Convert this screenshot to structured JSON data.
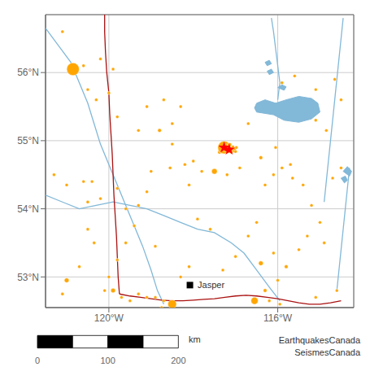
{
  "chart_data": {
    "type": "scatter",
    "xlim": [
      -121.5,
      -114.2
    ],
    "ylim": [
      52.55,
      56.85
    ],
    "xticks": [
      {
        "value": -120,
        "label": "120°W"
      },
      {
        "value": -116,
        "label": "116°W"
      }
    ],
    "yticks": [
      {
        "value": 53,
        "label": "53°N"
      },
      {
        "value": 54,
        "label": "54°N"
      },
      {
        "value": 55,
        "label": "55°N"
      },
      {
        "value": 56,
        "label": "56°N"
      }
    ],
    "grid": true,
    "series": [
      {
        "type": "line",
        "color": "#82b8d8",
        "x": [
          -121.5,
          -121.2,
          -120.9,
          -120.7,
          -120.5,
          -120.35,
          -120.2,
          -120.0,
          -119.8,
          -119.6,
          -119.4,
          -119.2,
          -119.0,
          -118.85,
          -118.7
        ],
        "y": [
          56.65,
          56.4,
          56.15,
          55.85,
          55.55,
          55.25,
          54.95,
          54.65,
          54.35,
          54.05,
          53.75,
          53.45,
          53.1,
          52.8,
          52.6
        ]
      },
      {
        "type": "line",
        "color": "#82b8d8",
        "x": [
          -121.5,
          -121.1,
          -120.7,
          -120.3,
          -119.9,
          -119.5,
          -119.1,
          -118.7,
          -118.3,
          -117.9,
          -117.5,
          -117.1,
          -116.8,
          -116.5,
          -116.2,
          -115.95
        ],
        "y": [
          54.2,
          54.1,
          54.0,
          54.05,
          54.1,
          54.05,
          54.0,
          53.9,
          53.8,
          53.7,
          53.65,
          53.5,
          53.35,
          53.1,
          52.85,
          52.65
        ]
      },
      {
        "type": "line",
        "color": "#82b8d8",
        "x": [
          -116.15,
          -116.1,
          -116.05,
          -116.0,
          -115.95,
          -116.0
        ],
        "y": [
          56.8,
          56.6,
          56.35,
          56.1,
          55.85,
          55.6
        ]
      },
      {
        "type": "line",
        "color": "#82b8d8",
        "x": [
          -114.45,
          -114.5,
          -114.55,
          -114.6,
          -114.65,
          -114.7,
          -114.75,
          -114.8,
          -114.85,
          -114.9
        ],
        "y": [
          56.8,
          56.5,
          56.2,
          55.9,
          55.6,
          55.3,
          55.0,
          54.7,
          54.4,
          54.1
        ]
      },
      {
        "type": "line",
        "color": "#82b8d8",
        "x": [
          -114.3,
          -114.35,
          -114.4,
          -114.45,
          -114.5,
          -114.55,
          -114.6
        ],
        "y": [
          54.6,
          54.3,
          54.0,
          53.7,
          53.4,
          53.1,
          52.8
        ]
      },
      {
        "type": "area",
        "color": "#82b8d8",
        "x": [
          -116.5,
          -116.1,
          -115.85,
          -115.5,
          -115.2,
          -115.0,
          -115.05,
          -115.2,
          -115.5,
          -115.8,
          -116.05,
          -116.3,
          -116.5,
          -116.55,
          -116.5
        ],
        "y": [
          55.42,
          55.38,
          55.3,
          55.27,
          55.32,
          55.42,
          55.55,
          55.62,
          55.65,
          55.6,
          55.55,
          55.6,
          55.55,
          55.48,
          55.42
        ]
      },
      {
        "type": "area",
        "color": "#82b8d8",
        "x": [
          -116.0,
          -115.9,
          -115.8,
          -115.85,
          -116.0
        ],
        "y": [
          55.78,
          55.82,
          55.79,
          55.74,
          55.78
        ]
      },
      {
        "type": "area",
        "color": "#82b8d8",
        "x": [
          -116.25,
          -116.15,
          -116.1,
          -116.2,
          -116.25
        ],
        "y": [
          56.02,
          56.05,
          56.0,
          55.97,
          56.02
        ]
      },
      {
        "type": "area",
        "color": "#82b8d8",
        "x": [
          -116.3,
          -116.2,
          -116.15,
          -116.25,
          -116.3
        ],
        "y": [
          56.15,
          56.18,
          56.13,
          56.1,
          56.15
        ]
      },
      {
        "type": "area",
        "color": "#82b8d8",
        "x": [
          -114.45,
          -114.35,
          -114.25,
          -114.3,
          -114.45
        ],
        "y": [
          54.55,
          54.62,
          54.55,
          54.48,
          54.55
        ]
      },
      {
        "type": "area",
        "color": "#82b8d8",
        "x": [
          -114.5,
          -114.4,
          -114.35,
          -114.42,
          -114.5
        ],
        "y": [
          54.45,
          54.48,
          54.42,
          54.38,
          54.45
        ]
      },
      {
        "type": "line",
        "color": "#aa1111",
        "x": [
          -120.1,
          -120.1,
          -120.08,
          -120.05,
          -120.0,
          -119.98,
          -119.95,
          -119.92,
          -119.9,
          -119.88,
          -119.85,
          -119.82,
          -119.8,
          -119.78,
          -119.75
        ],
        "y": [
          56.85,
          56.6,
          56.3,
          56.0,
          55.7,
          55.4,
          55.1,
          54.8,
          54.5,
          54.2,
          53.9,
          53.6,
          53.3,
          53.0,
          52.75
        ]
      },
      {
        "type": "line",
        "color": "#aa1111",
        "x": [
          -119.75,
          -119.5,
          -119.25,
          -119.0,
          -118.75,
          -118.5,
          -118.25,
          -118.0,
          -117.75,
          -117.5,
          -117.25,
          -117.0,
          -116.75,
          -116.5,
          -116.25,
          -116.0,
          -115.75,
          -115.5,
          -115.25,
          -115.0,
          -114.75,
          -114.5
        ],
        "y": [
          52.75,
          52.72,
          52.7,
          52.68,
          52.66,
          52.65,
          52.65,
          52.66,
          52.67,
          52.68,
          52.7,
          52.72,
          52.73,
          52.72,
          52.7,
          52.68,
          52.65,
          52.62,
          52.6,
          52.6,
          52.62,
          52.65
        ]
      },
      {
        "type": "scatter",
        "color": "#FFA500",
        "marker": "circle",
        "x": [
          -121.1,
          -120.85,
          -120.6,
          -120.2,
          -119.9,
          -120.5,
          -120.3,
          -120.0,
          -119.1,
          -118.7,
          -118.3,
          -118.5,
          -118.8,
          -118.5,
          -118.2,
          -118.1,
          -119.0,
          -119.1,
          -119.3,
          -119.4,
          -119.6,
          -119.8,
          -120.0,
          -120.1,
          -120.4,
          -120.5,
          -119.8,
          -121.1,
          -121.0,
          -120.7,
          -120.5,
          -120.35,
          -119.8,
          -119.3,
          -118.55,
          -118.0,
          -117.8,
          -117.5,
          -117.2,
          -116.9,
          -116.4,
          -116.05,
          -115.7,
          -115.4,
          -115.2,
          -115.0,
          -114.9,
          -114.7,
          -114.5,
          -114.6,
          -115.5,
          -115.8,
          -116.1,
          -116.4,
          -116.7,
          -116.5,
          -115.3,
          -116.0,
          -116.3,
          -116.55,
          -116.2,
          -115.95,
          -117.6,
          -117.9,
          -118.5,
          -118.7,
          -118.75,
          -118.9,
          -119.1,
          -119.3,
          -119.5,
          -119.7,
          -119.9,
          -115.1,
          -116.3,
          -116.1,
          -115.9,
          -115.65,
          -114.85,
          -115.1,
          -116.7,
          -115.9,
          -115.6,
          -115.1,
          -114.65,
          -114.5,
          -117.0,
          -117.3,
          -118.1,
          -118.3,
          -118.9,
          -119.6,
          -120.2,
          -120.6,
          -121.0,
          -121.3
        ],
        "y": [
          56.6,
          56.05,
          56.1,
          56.2,
          56.05,
          55.75,
          55.6,
          55.7,
          55.5,
          55.6,
          55.5,
          55.25,
          55.15,
          54.95,
          54.65,
          54.35,
          54.55,
          54.25,
          54.05,
          53.75,
          53.5,
          53.25,
          53.0,
          52.8,
          54.4,
          54.1,
          54.3,
          52.75,
          52.95,
          53.15,
          53.7,
          53.5,
          55.35,
          55.15,
          54.6,
          54.7,
          54.55,
          54.55,
          54.5,
          54.6,
          54.75,
          54.9,
          54.65,
          54.35,
          54.05,
          53.8,
          53.5,
          54.45,
          54.6,
          52.8,
          53.4,
          53.15,
          53.35,
          53.2,
          53.6,
          53.8,
          53.6,
          52.95,
          52.8,
          52.65,
          52.65,
          52.6,
          53.7,
          53.85,
          52.6,
          52.65,
          52.55,
          52.7,
          52.7,
          52.75,
          52.65,
          52.7,
          52.8,
          52.7,
          54.35,
          54.5,
          54.6,
          54.45,
          55.15,
          55.3,
          55.25,
          55.85,
          55.95,
          55.75,
          55.9,
          55.6,
          53.3,
          53.1,
          53.15,
          53.0,
          53.45,
          54.0,
          54.15,
          54.4,
          54.35,
          54.5
        ],
        "magnitudes": [
          2.2,
          4.5,
          2.3,
          2.2,
          2.2,
          2.3,
          2.0,
          2.1,
          2.4,
          2.1,
          2.2,
          2.3,
          2.8,
          2.2,
          2.1,
          2.2,
          2.1,
          2.3,
          2.0,
          2.2,
          2.0,
          2.1,
          2.2,
          2.0,
          2.0,
          2.1,
          2.0,
          2.0,
          3.0,
          2.1,
          2.2,
          2.0,
          2.1,
          2.0,
          2.2,
          2.4,
          2.6,
          3.2,
          2.0,
          2.2,
          2.8,
          2.1,
          2.4,
          2.0,
          2.3,
          2.1,
          2.5,
          2.2,
          2.0,
          2.1,
          2.7,
          2.8,
          2.4,
          3.0,
          2.1,
          2.5,
          2.2,
          2.3,
          2.8,
          3.5,
          2.2,
          2.5,
          2.0,
          2.1,
          3.8,
          2.1,
          2.2,
          2.0,
          2.3,
          2.0,
          2.1,
          2.4,
          3.0,
          2.0,
          2.3,
          2.5,
          2.1,
          2.2,
          2.3,
          2.2,
          2.3,
          2.2,
          2.4,
          2.0,
          2.1,
          2.3,
          2.0,
          2.0,
          2.2,
          2.1,
          2.2,
          2.3,
          2.1,
          2.2,
          2.0,
          2.1
        ]
      },
      {
        "type": "scatter",
        "color": "#FFA500",
        "marker": "circle",
        "x": [
          -117.38,
          -117.33,
          -117.3,
          -117.27,
          -117.25,
          -117.22,
          -117.2,
          -117.18,
          -117.17,
          -117.15,
          -117.14,
          -117.12,
          -117.1,
          -117.08,
          -117.06,
          -117.04,
          -117.02,
          -117.0,
          -116.98
        ],
        "y": [
          54.83,
          54.87,
          54.84,
          54.9,
          54.87,
          54.93,
          54.88,
          54.84,
          54.91,
          54.86,
          54.94,
          54.89,
          54.83,
          54.87,
          54.91,
          54.85,
          54.88,
          54.84,
          54.9
        ],
        "magnitudes": [
          2.8,
          3.5,
          2.5,
          4.5,
          3.0,
          2.7,
          2.3,
          2.6,
          2.4,
          3.2,
          2.9,
          2.2,
          2.1,
          2.0,
          2.3,
          2.5,
          2.7,
          2.4,
          2.1
        ]
      },
      {
        "type": "scatter",
        "color": "red",
        "marker": "star",
        "x": [
          -117.27,
          -117.15
        ],
        "y": [
          54.9,
          54.87
        ]
      },
      {
        "type": "scatter",
        "color": "black",
        "marker": "square",
        "x": [
          -118.08
        ],
        "y": [
          52.88
        ],
        "labels": [
          "Jasper"
        ]
      }
    ],
    "annotations": [
      "EarthquakesCanada",
      "SeismesCanada"
    ],
    "scale_bar": {
      "xlim": [
        0,
        210
      ],
      "xticks": [
        0,
        100,
        200
      ],
      "unit": "km",
      "segments": [
        {
          "start": 0,
          "end": 50,
          "color": "black"
        },
        {
          "start": 50,
          "end": 100,
          "color": "white"
        },
        {
          "start": 100,
          "end": 150,
          "color": "black"
        },
        {
          "start": 150,
          "end": 200,
          "color": "white"
        }
      ]
    }
  }
}
